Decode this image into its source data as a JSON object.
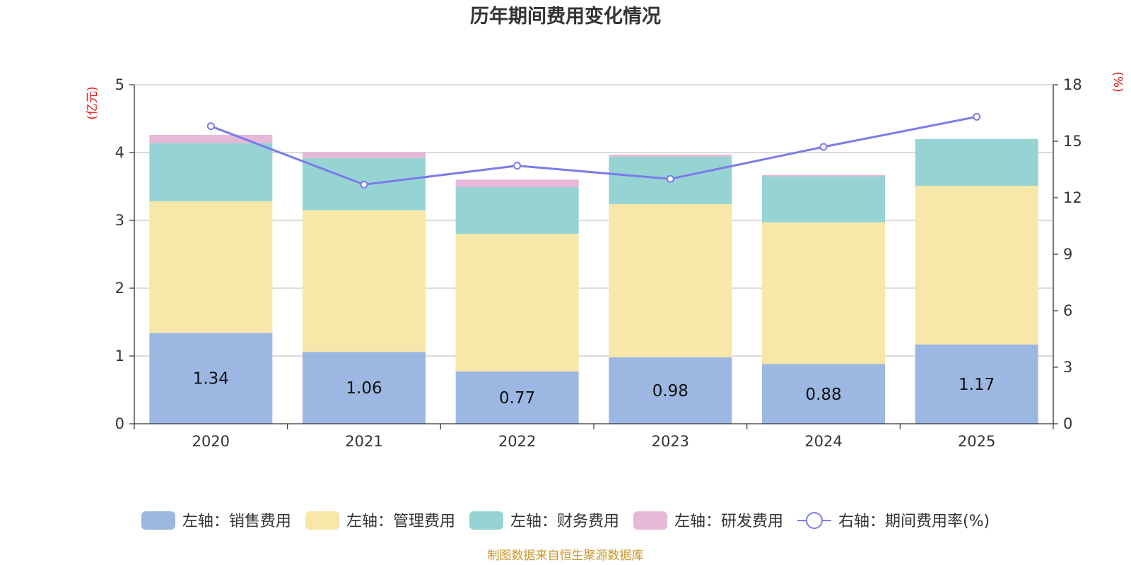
{
  "chart_data": {
    "type": "bar",
    "title": "历年期间费用变化情况",
    "categories": [
      "2020",
      "2021",
      "2022",
      "2023",
      "2024",
      "2025"
    ],
    "left_axis": {
      "unit_label": "(亿元)",
      "ylim": [
        0,
        5
      ],
      "ticks": [
        "0",
        "1",
        "2",
        "3",
        "4",
        "5"
      ]
    },
    "right_axis": {
      "unit_label": "(%)",
      "ylim": [
        0,
        18
      ],
      "ticks": [
        "0",
        "3",
        "6",
        "9",
        "12",
        "15",
        "18"
      ]
    },
    "series": [
      {
        "name": "左轴：销售费用",
        "type": "bar",
        "axis": "left",
        "color": "#9cb8e2",
        "values": [
          1.34,
          1.06,
          0.77,
          0.98,
          0.88,
          1.17
        ],
        "labels": [
          "1.34",
          "1.06",
          "0.77",
          "0.98",
          "0.88",
          "1.17"
        ]
      },
      {
        "name": "左轴：管理费用",
        "type": "bar",
        "axis": "left",
        "color": "#f7e7a8",
        "values": [
          1.94,
          2.09,
          2.03,
          2.26,
          2.09,
          2.34
        ]
      },
      {
        "name": "左轴：财务费用",
        "type": "bar",
        "axis": "left",
        "color": "#96d4d4",
        "values": [
          0.86,
          0.77,
          0.69,
          0.7,
          0.68,
          0.69
        ]
      },
      {
        "name": "左轴：研发费用",
        "type": "bar",
        "axis": "left",
        "color": "#e8b8d8",
        "values": [
          0.12,
          0.09,
          0.11,
          0.03,
          0.02,
          0.0
        ]
      },
      {
        "name": "右轴：期间费用率(%)",
        "type": "line",
        "axis": "right",
        "color": "#7b7bea",
        "values": [
          15.8,
          12.7,
          13.7,
          13.0,
          14.7,
          16.3
        ]
      }
    ],
    "legend_position": "bottom",
    "grid": true,
    "source": "制图数据来自恒生聚源数据库"
  }
}
